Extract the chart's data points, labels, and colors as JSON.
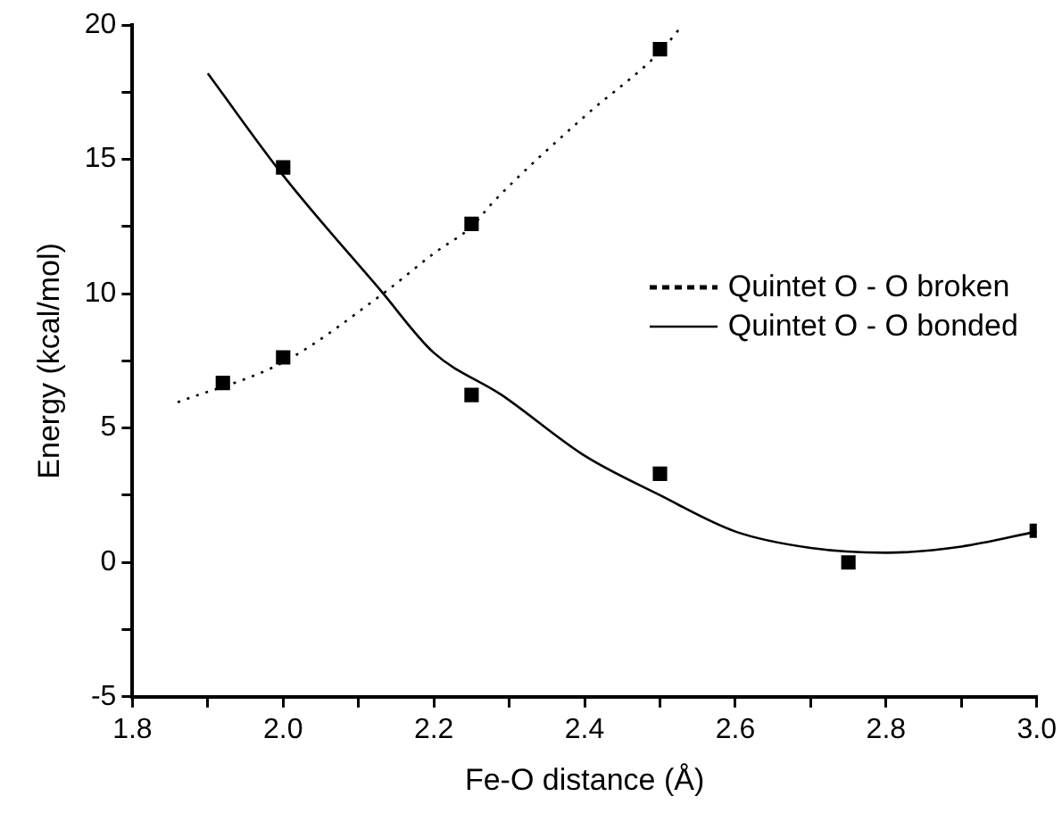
{
  "chart_data": {
    "type": "line",
    "xlabel": "Fe-O distance (Å)",
    "ylabel": "Energy (kcal/mol)",
    "xlim": [
      1.8,
      3.0
    ],
    "ylim": [
      -5,
      20
    ],
    "xticks": [
      1.8,
      {
        "value": 1.9,
        "label": null
      },
      {
        "value": 2.0,
        "label": "2.0"
      },
      {
        "value": 2.1,
        "label": null
      },
      2.2,
      {
        "value": 2.3,
        "label": null
      },
      2.4,
      {
        "value": 2.5,
        "label": null
      },
      2.6,
      {
        "value": 2.7,
        "label": null
      },
      2.8,
      {
        "value": 2.9,
        "label": null
      },
      {
        "value": 3.0,
        "label": "3.0"
      }
    ],
    "yticks": [
      -5,
      {
        "value": -2.5,
        "label": null
      },
      0,
      {
        "value": 2.5,
        "label": null
      },
      5,
      {
        "value": 7.5,
        "label": null
      },
      10,
      {
        "value": 12.5,
        "label": null
      },
      15,
      {
        "value": 17.5,
        "label": null
      },
      20
    ],
    "grid": false,
    "legend": "right",
    "series": [
      {
        "name": "Quintet O - O broken",
        "type": "line",
        "line_style": "dotted",
        "marker": "none",
        "color": "#000000",
        "x": [
          1.86,
          2.0,
          2.13,
          2.2,
          2.25,
          2.28,
          2.4,
          2.5,
          2.53
        ],
        "values": [
          5.96,
          7.45,
          9.95,
          11.5,
          12.5,
          13.45,
          16.6,
          19.0,
          20.0
        ]
      },
      {
        "name": "Quintet O - O bonded",
        "type": "line",
        "line_style": "solid",
        "marker": "none",
        "color": "#000000",
        "x": [
          1.9,
          2.0,
          2.13,
          2.2,
          2.29,
          2.4,
          2.5,
          2.6,
          2.7,
          2.8,
          2.9,
          3.0
        ],
        "values": [
          18.2,
          14.4,
          10.1,
          7.8,
          6.23,
          3.97,
          2.5,
          1.15,
          0.54,
          0.36,
          0.59,
          1.15
        ]
      },
      {
        "type": "scatter",
        "marker": "square",
        "color": "#000000",
        "x": [
          1.92,
          2.0,
          2.25,
          2.5
        ],
        "values": [
          6.68,
          7.63,
          12.6,
          19.1
        ]
      },
      {
        "type": "scatter",
        "marker": "square",
        "color": "#000000",
        "x": [
          2.0,
          2.25,
          2.5,
          2.75,
          3.0
        ],
        "values": [
          14.7,
          6.23,
          3.3,
          0.0,
          1.18
        ]
      }
    ]
  }
}
